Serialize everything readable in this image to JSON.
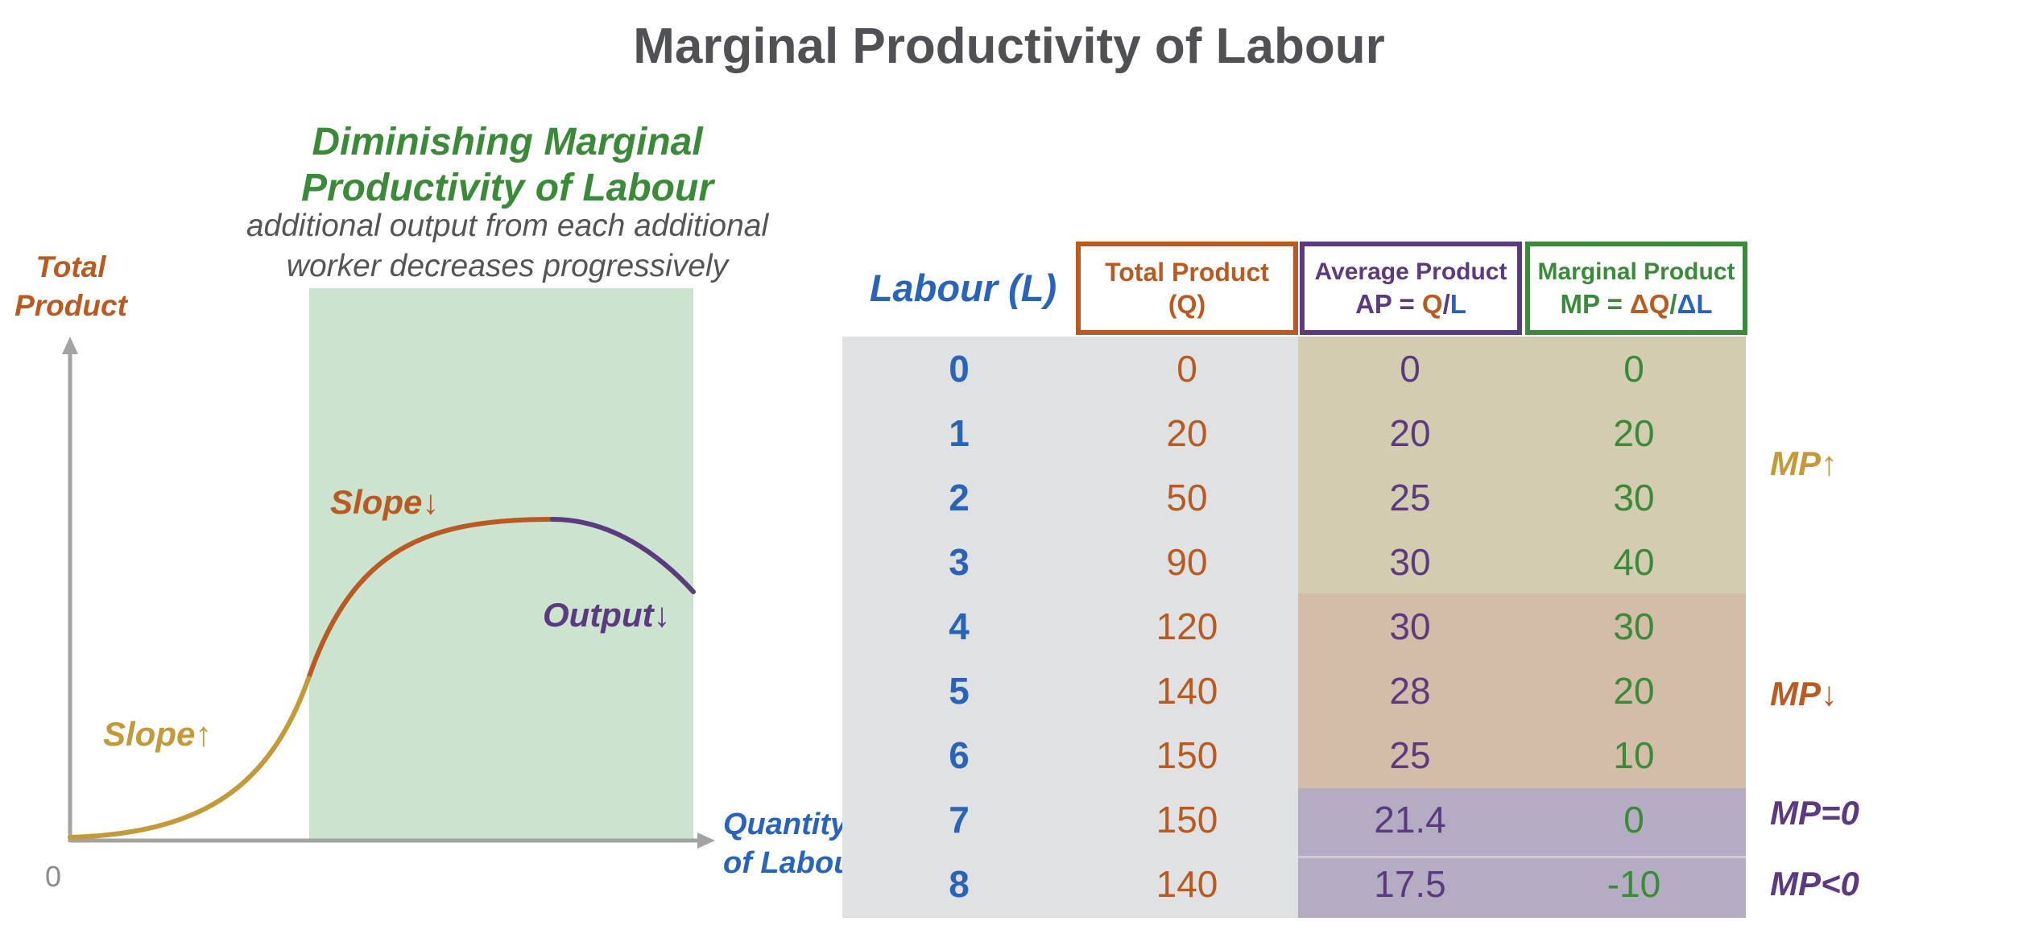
{
  "title": "Marginal Productivity of Labour",
  "graph": {
    "region_title": "Diminishing Marginal Productivity of Labour",
    "region_title_lines": [
      "Diminishing Marginal",
      "Productivity of Labour"
    ],
    "region_subtitle_lines": [
      "additional output from each additional",
      "worker decreases progressively"
    ],
    "y_label_lines": [
      "Total",
      "Product"
    ],
    "x_label_lines": [
      "Quantity",
      "of Labour"
    ],
    "origin_label": "0",
    "annotations": {
      "slope_up": "Slope↑",
      "slope_down": "Slope↓",
      "output_down": "Output↓"
    },
    "colors": {
      "region_fill": "#cbe3cf",
      "axis": "#a3a3a3",
      "curve_increasing": "#c39a3a",
      "curve_diminishing": "#b85a22",
      "curve_negative": "#5c3a80"
    }
  },
  "table": {
    "labour_header": "Labour (L)",
    "total_header_lines": [
      "Total Product",
      "(Q)"
    ],
    "average_header": {
      "line1": "Average Product",
      "prefix": "AP = ",
      "q": "Q",
      "slash": "/",
      "l": "L"
    },
    "marginal_header": {
      "line1": "Marginal Product",
      "prefix": "MP = ",
      "dq": "ΔQ",
      "slash": "/",
      "dl": "ΔL"
    },
    "annotations": {
      "mp_up": "MP↑",
      "mp_down": "MP↓",
      "mp_zero": "MP=0",
      "mp_negative": "MP<0"
    }
  },
  "chart_data": {
    "type": "table",
    "columns": [
      "Labour (L)",
      "Total Product (Q)",
      "Average Product AP = Q/L",
      "Marginal Product MP = ΔQ/ΔL"
    ],
    "rows": [
      [
        "0",
        "0",
        "0",
        "0"
      ],
      [
        "1",
        "20",
        "20",
        "20"
      ],
      [
        "2",
        "50",
        "25",
        "30"
      ],
      [
        "3",
        "90",
        "30",
        "40"
      ],
      [
        "4",
        "120",
        "30",
        "30"
      ],
      [
        "5",
        "140",
        "28",
        "20"
      ],
      [
        "6",
        "150",
        "25",
        "10"
      ],
      [
        "7",
        "150",
        "21.4",
        "0"
      ],
      [
        "8",
        "140",
        "17.5",
        "-10"
      ]
    ]
  }
}
